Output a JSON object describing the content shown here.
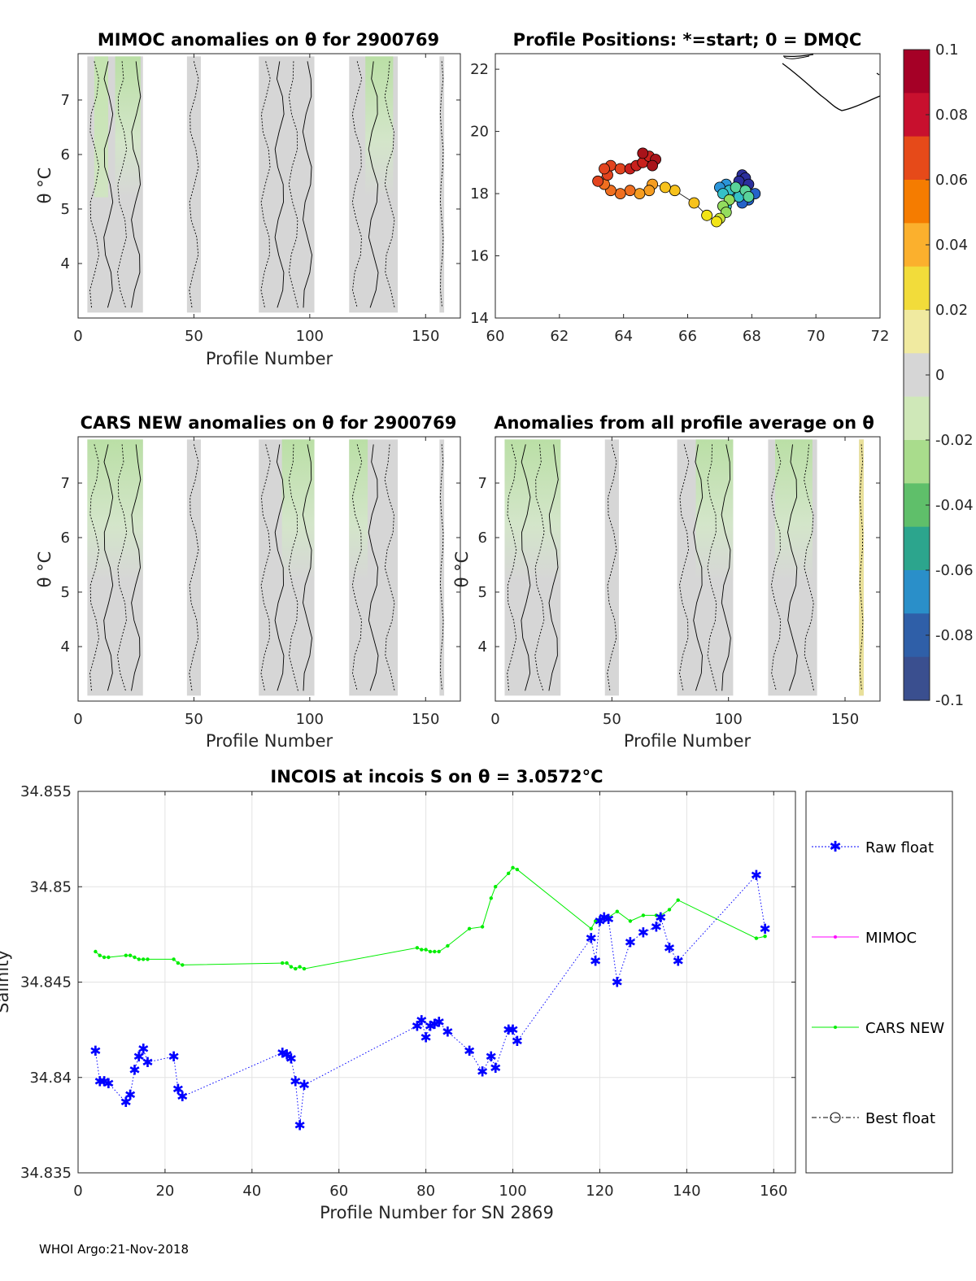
{
  "footer": "WHOI Argo:21-Nov-2018",
  "colors": {
    "raw": "#0000ff",
    "mimoc": "#ff00ff",
    "cars": "#00ee00",
    "best": "#000000",
    "anomalyBase": "#d6d6d6",
    "anomalyGreen": "#b7e0a0"
  },
  "colorbar": {
    "ticks": [
      "0.1",
      "0.08",
      "0.06",
      "0.04",
      "0.02",
      "0",
      "-0.02",
      "-0.04",
      "-0.06",
      "-0.08",
      "-0.1"
    ],
    "colors": [
      "#a50026",
      "#c8102e",
      "#e64a19",
      "#f57c00",
      "#fbb02d",
      "#f2dc3a",
      "#f0eaa0",
      "#d6d6d6",
      "#cfe8b8",
      "#a9dc8c",
      "#5fbf6a",
      "#2ca58d",
      "#2a8fc9",
      "#2f5fa8",
      "#3a4f8f"
    ]
  },
  "chart_data": [
    {
      "type": "heatmap",
      "title": "MIMOC anomalies on θ  for 2900769",
      "xlabel": "Profile Number",
      "ylabel": "θ °C",
      "xlim": [
        0,
        165
      ],
      "ylim": [
        3,
        7.85
      ],
      "xticks": [
        "0",
        "50",
        "100",
        "150"
      ],
      "xtickvals": [
        0,
        50,
        100,
        150
      ],
      "yticks": [
        "4",
        "5",
        "6",
        "7"
      ],
      "ytickvals": [
        4,
        5,
        6,
        7
      ],
      "blocks": [
        [
          4,
          28
        ],
        [
          47,
          53
        ],
        [
          78,
          102
        ],
        [
          117,
          138
        ],
        [
          156,
          158
        ]
      ]
    },
    {
      "type": "scatter",
      "title": "Profile Positions: *=start; 0 = DMQC",
      "xlim": [
        60,
        72
      ],
      "ylim": [
        14,
        22.5
      ],
      "xticks": [
        "60",
        "62",
        "64",
        "66",
        "68",
        "70",
        "72"
      ],
      "xtickvals": [
        60,
        62,
        64,
        66,
        68,
        70,
        72
      ],
      "yticks": [
        "14",
        "16",
        "18",
        "20",
        "22"
      ],
      "ytickvals": [
        14,
        16,
        18,
        20,
        22
      ],
      "points": [
        [
          67.7,
          18.6,
          0.0
        ],
        [
          67.8,
          18.5,
          0.02
        ],
        [
          67.6,
          18.4,
          0.04
        ],
        [
          67.9,
          18.3,
          0.06
        ],
        [
          68.1,
          18.0,
          0.08
        ],
        [
          67.9,
          17.8,
          0.1
        ],
        [
          67.7,
          17.7,
          0.12
        ],
        [
          67.5,
          18.1,
          0.14
        ],
        [
          67.2,
          18.3,
          0.16
        ],
        [
          67.0,
          18.2,
          0.18
        ],
        [
          67.4,
          17.9,
          0.2
        ],
        [
          67.2,
          17.6,
          0.22
        ],
        [
          67.6,
          17.9,
          0.24
        ],
        [
          67.3,
          18.1,
          0.26
        ],
        [
          67.1,
          18.0,
          0.28
        ],
        [
          67.5,
          18.2,
          0.3
        ],
        [
          67.8,
          18.1,
          0.32
        ],
        [
          67.9,
          17.9,
          0.34
        ],
        [
          67.3,
          17.8,
          0.36
        ],
        [
          67.1,
          17.6,
          0.38
        ],
        [
          67.2,
          17.4,
          0.42
        ],
        [
          67.0,
          17.2,
          0.46
        ],
        [
          66.9,
          17.1,
          0.5
        ],
        [
          66.6,
          17.3,
          0.54
        ],
        [
          66.2,
          17.7,
          0.58
        ],
        [
          65.6,
          18.1,
          0.62
        ],
        [
          65.3,
          18.2,
          0.64
        ],
        [
          64.9,
          18.3,
          0.66
        ],
        [
          64.8,
          18.1,
          0.68
        ],
        [
          64.5,
          18.0,
          0.7
        ],
        [
          64.2,
          18.1,
          0.72
        ],
        [
          63.9,
          18.0,
          0.74
        ],
        [
          63.6,
          18.1,
          0.76
        ],
        [
          63.4,
          18.3,
          0.78
        ],
        [
          63.5,
          18.6,
          0.8
        ],
        [
          63.6,
          18.9,
          0.82
        ],
        [
          63.9,
          18.8,
          0.84
        ],
        [
          64.2,
          18.8,
          0.86
        ],
        [
          64.4,
          18.9,
          0.88
        ],
        [
          64.6,
          19.0,
          0.9
        ],
        [
          64.8,
          19.2,
          0.92
        ],
        [
          64.6,
          19.3,
          0.94
        ],
        [
          65.0,
          19.1,
          0.96
        ],
        [
          64.9,
          18.9,
          0.98
        ],
        [
          63.2,
          18.4,
          0.81
        ],
        [
          63.4,
          18.8,
          0.83
        ]
      ]
    },
    {
      "type": "heatmap",
      "title": "CARS NEW anomalies on θ for 2900769",
      "xlabel": "Profile Number",
      "ylabel": "θ °C",
      "xlim": [
        0,
        165
      ],
      "ylim": [
        3,
        7.85
      ],
      "xticks": [
        "0",
        "50",
        "100",
        "150"
      ],
      "xtickvals": [
        0,
        50,
        100,
        150
      ],
      "yticks": [
        "4",
        "5",
        "6",
        "7"
      ],
      "ytickvals": [
        4,
        5,
        6,
        7
      ],
      "blocks": [
        [
          4,
          28
        ],
        [
          47,
          53
        ],
        [
          78,
          102
        ],
        [
          117,
          138
        ],
        [
          156,
          158
        ]
      ]
    },
    {
      "type": "heatmap",
      "title": "Anomalies from all profile average on θ",
      "xlabel": "Profile Number",
      "ylabel": "θ °C",
      "xlim": [
        0,
        165
      ],
      "ylim": [
        3,
        7.85
      ],
      "xticks": [
        "0",
        "50",
        "100",
        "150"
      ],
      "xtickvals": [
        0,
        50,
        100,
        150
      ],
      "yticks": [
        "4",
        "5",
        "6",
        "7"
      ],
      "ytickvals": [
        4,
        5,
        6,
        7
      ],
      "blocks": [
        [
          4,
          28
        ],
        [
          47,
          53
        ],
        [
          78,
          102
        ],
        [
          117,
          138
        ],
        [
          156,
          158
        ]
      ]
    },
    {
      "type": "line",
      "title": "INCOIS at incois S on θ = 3.0572°C",
      "xlabel": "Profile Number for SN 2869",
      "ylabel": "Salinity",
      "xlim": [
        0,
        165
      ],
      "ylim": [
        34.835,
        34.855
      ],
      "xticks": [
        "0",
        "20",
        "40",
        "60",
        "80",
        "100",
        "120",
        "140",
        "160"
      ],
      "xtickvals": [
        0,
        20,
        40,
        60,
        80,
        100,
        120,
        140,
        160
      ],
      "yticks": [
        "34.835",
        "34.84",
        "34.845",
        "34.85",
        "34.855"
      ],
      "ytickvals": [
        34.835,
        34.84,
        34.845,
        34.85,
        34.855
      ],
      "legend": [
        "Raw float",
        "MIMOC",
        "CARS NEW",
        "Best float"
      ],
      "series": [
        {
          "name": "Raw float",
          "x": [
            4,
            5,
            6,
            7,
            11,
            12,
            13,
            14,
            15,
            16,
            22,
            23,
            24,
            47,
            48,
            49,
            50,
            51,
            52,
            78,
            79,
            80,
            81,
            82,
            83,
            85,
            90,
            93,
            95,
            96,
            99,
            100,
            101,
            118,
            119,
            120,
            121,
            122,
            124,
            127,
            130,
            133,
            134,
            136,
            138,
            156,
            158
          ],
          "y": [
            34.8414,
            34.8398,
            34.8398,
            34.8397,
            34.8387,
            34.8391,
            34.8404,
            34.8411,
            34.8415,
            34.8408,
            34.8411,
            34.8394,
            34.839,
            34.8413,
            34.8412,
            34.841,
            34.8398,
            34.8375,
            34.8396,
            34.8427,
            34.843,
            34.8421,
            34.8427,
            34.8428,
            34.8429,
            34.8424,
            34.8414,
            34.8403,
            34.8411,
            34.8405,
            34.8425,
            34.8425,
            34.8419,
            34.8473,
            34.8461,
            34.8482,
            34.8484,
            34.8483,
            34.845,
            34.8471,
            34.8476,
            34.8479,
            34.8484,
            34.8468,
            34.8461,
            34.8506,
            34.8478
          ]
        },
        {
          "name": "CARS NEW",
          "x": [
            4,
            5,
            6,
            7,
            11,
            12,
            13,
            14,
            15,
            16,
            22,
            23,
            24,
            47,
            48,
            49,
            50,
            51,
            52,
            78,
            79,
            80,
            81,
            82,
            83,
            85,
            90,
            93,
            95,
            96,
            99,
            100,
            101,
            118,
            119,
            120,
            121,
            122,
            124,
            127,
            130,
            133,
            134,
            136,
            138,
            156,
            158
          ],
          "y": [
            34.8466,
            34.8464,
            34.8463,
            34.8463,
            34.8464,
            34.8464,
            34.8463,
            34.8462,
            34.8462,
            34.8462,
            34.8462,
            34.846,
            34.8459,
            34.846,
            34.846,
            34.8458,
            34.8457,
            34.8458,
            34.8457,
            34.8468,
            34.8467,
            34.8467,
            34.8466,
            34.8466,
            34.8466,
            34.8469,
            34.8478,
            34.8479,
            34.8494,
            34.85,
            34.8507,
            34.851,
            34.8509,
            34.8478,
            34.8482,
            34.8483,
            34.8484,
            34.8484,
            34.8487,
            34.8482,
            34.8485,
            34.8485,
            34.8485,
            34.8488,
            34.8493,
            34.8473,
            34.8474
          ]
        },
        {
          "name": "MIMOC",
          "x": [],
          "y": []
        },
        {
          "name": "Best float",
          "x": [],
          "y": []
        }
      ]
    }
  ]
}
